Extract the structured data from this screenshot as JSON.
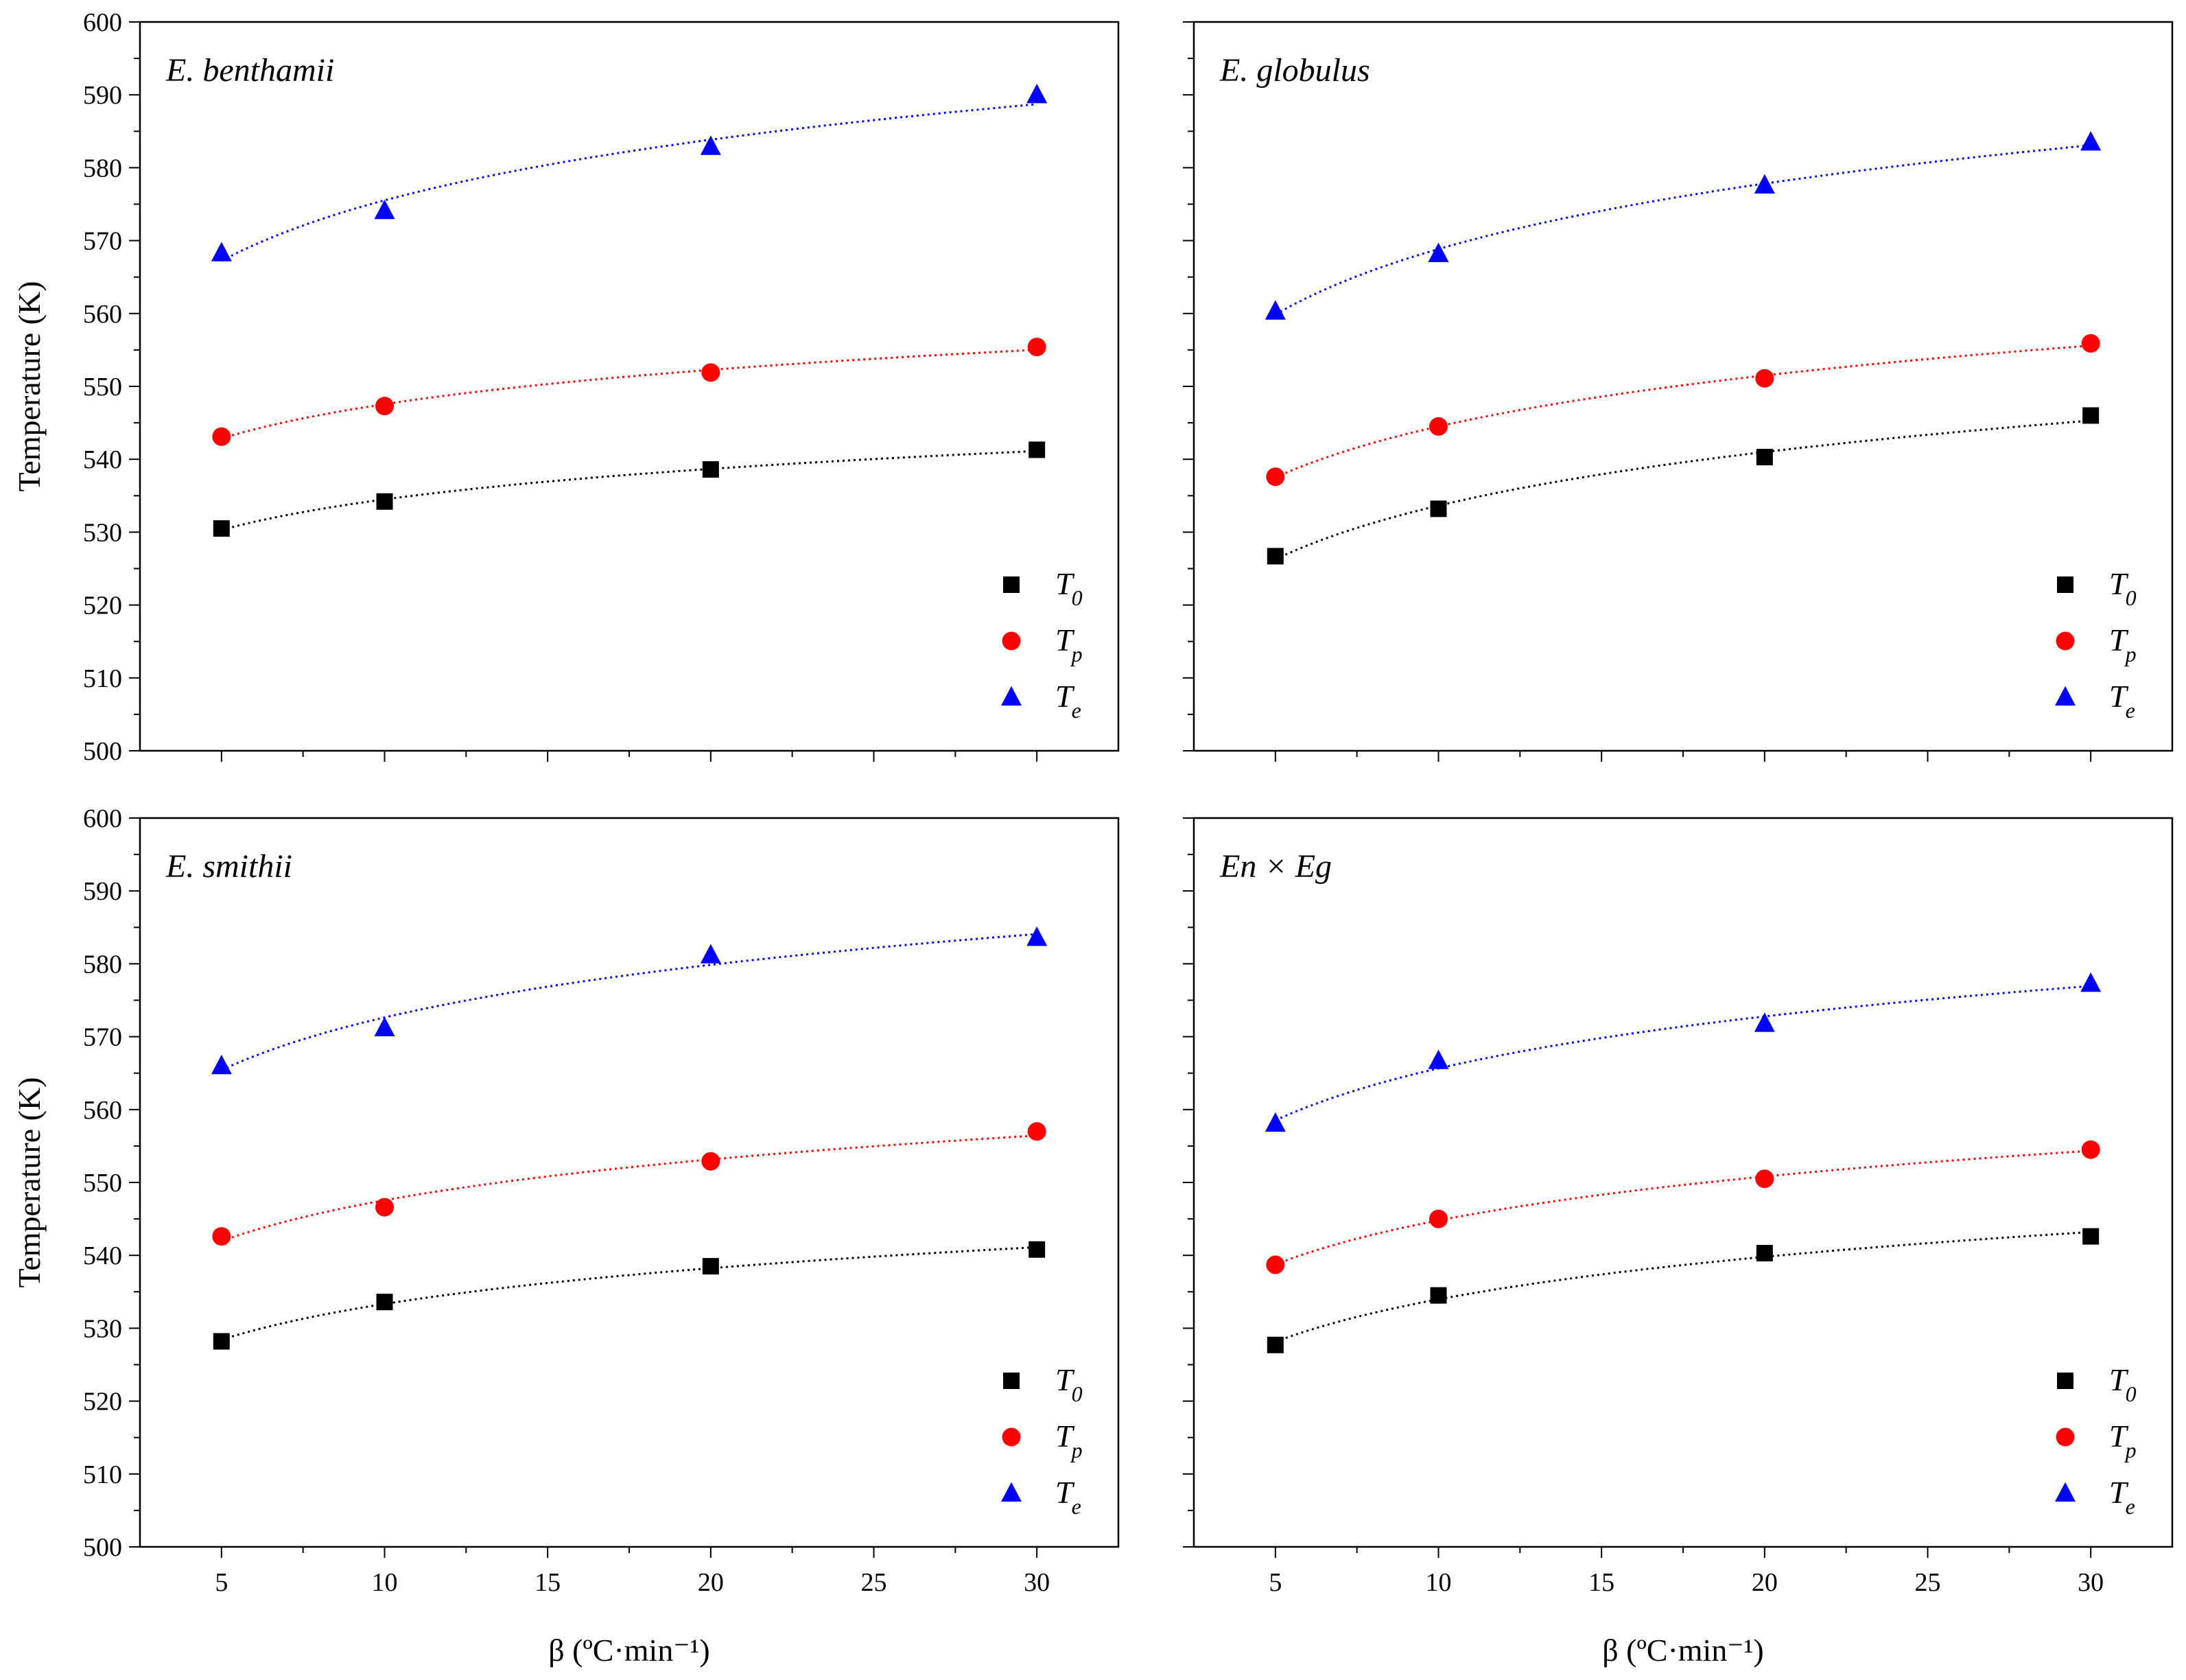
{
  "chart_data": [
    {
      "type": "scatter",
      "title": "E. benthamii",
      "title_style": "italic",
      "xlabel": "",
      "ylabel": "Temperature (K)",
      "x": [
        5,
        10,
        20,
        30
      ],
      "xlim": [
        2.5,
        32.5
      ],
      "ylim": [
        500,
        600
      ],
      "xticks": [],
      "yticks": [
        500,
        510,
        520,
        530,
        540,
        550,
        560,
        570,
        580,
        590,
        600
      ],
      "grid": false,
      "legend_position": "bottom-right",
      "series": [
        {
          "name": "T0",
          "label_main": "T",
          "label_sub": "0",
          "marker": "square",
          "color": "#000000",
          "values": [
            530.5,
            534.2,
            538.6,
            541.3
          ]
        },
        {
          "name": "Tp",
          "label_main": "T",
          "label_sub": "p",
          "marker": "circle",
          "color": "#ff0000",
          "values": [
            543.1,
            547.3,
            551.9,
            555.4
          ]
        },
        {
          "name": "Te",
          "label_main": "T",
          "label_sub": "e",
          "marker": "triangle",
          "color": "#0000ff",
          "values": [
            568.3,
            574.1,
            582.9,
            590.0
          ]
        }
      ]
    },
    {
      "type": "scatter",
      "title": "E. globulus",
      "title_style": "italic",
      "xlabel": "",
      "ylabel": "",
      "x": [
        5,
        10,
        20,
        30
      ],
      "xlim": [
        2.5,
        32.5
      ],
      "ylim": [
        500,
        600
      ],
      "xticks": [],
      "yticks": [],
      "grid": false,
      "legend_position": "bottom-right",
      "series": [
        {
          "name": "T0",
          "label_main": "T",
          "label_sub": "0",
          "marker": "square",
          "color": "#000000",
          "values": [
            526.7,
            533.2,
            540.3,
            546.0
          ]
        },
        {
          "name": "Tp",
          "label_main": "T",
          "label_sub": "p",
          "marker": "circle",
          "color": "#ff0000",
          "values": [
            537.6,
            544.5,
            551.1,
            555.9
          ]
        },
        {
          "name": "Te",
          "label_main": "T",
          "label_sub": "e",
          "marker": "triangle",
          "color": "#0000ff",
          "values": [
            560.3,
            568.2,
            577.6,
            583.5
          ]
        }
      ]
    },
    {
      "type": "scatter",
      "title": "E. smithii",
      "title_style": "italic",
      "xlabel": "β (ºC·min⁻¹)",
      "ylabel": "Temperature (K)",
      "x": [
        5,
        10,
        20,
        30
      ],
      "xlim": [
        2.5,
        32.5
      ],
      "ylim": [
        500,
        600
      ],
      "xticks": [
        5,
        10,
        15,
        20,
        25,
        30
      ],
      "yticks": [
        500,
        510,
        520,
        530,
        540,
        550,
        560,
        570,
        580,
        590,
        600
      ],
      "grid": false,
      "legend_position": "bottom-right",
      "series": [
        {
          "name": "T0",
          "label_main": "T",
          "label_sub": "0",
          "marker": "square",
          "color": "#000000",
          "values": [
            528.2,
            533.6,
            538.5,
            540.8
          ]
        },
        {
          "name": "Tp",
          "label_main": "T",
          "label_sub": "p",
          "marker": "circle",
          "color": "#ff0000",
          "values": [
            542.6,
            546.6,
            552.9,
            557.0
          ]
        },
        {
          "name": "Te",
          "label_main": "T",
          "label_sub": "e",
          "marker": "triangle",
          "color": "#0000ff",
          "values": [
            566.0,
            571.2,
            581.2,
            583.6
          ]
        }
      ]
    },
    {
      "type": "scatter",
      "title": "En × Eg",
      "title_style": "italic",
      "xlabel": "β (ºC·min⁻¹)",
      "ylabel": "",
      "x": [
        5,
        10,
        20,
        30
      ],
      "xlim": [
        2.5,
        32.5
      ],
      "ylim": [
        500,
        600
      ],
      "xticks": [
        5,
        10,
        15,
        20,
        25,
        30
      ],
      "yticks": [],
      "grid": false,
      "legend_position": "bottom-right",
      "series": [
        {
          "name": "T0",
          "label_main": "T",
          "label_sub": "0",
          "marker": "square",
          "color": "#000000",
          "values": [
            527.7,
            534.5,
            540.3,
            542.6
          ]
        },
        {
          "name": "Tp",
          "label_main": "T",
          "label_sub": "p",
          "marker": "circle",
          "color": "#ff0000",
          "values": [
            538.7,
            545.0,
            550.5,
            554.5
          ]
        },
        {
          "name": "Te",
          "label_main": "T",
          "label_sub": "e",
          "marker": "triangle",
          "color": "#0000ff",
          "values": [
            558.1,
            566.7,
            571.8,
            577.3
          ]
        }
      ]
    }
  ]
}
